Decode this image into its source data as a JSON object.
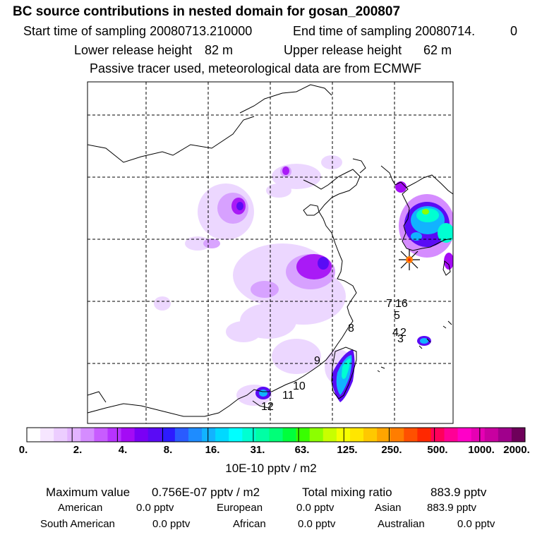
{
  "header": {
    "title": "BC  source contributions in nested domain for gosan_200807",
    "start_label": "Start time of sampling 20080713.210000",
    "end_label": "End time of sampling 20080714.",
    "end_suffix": "0",
    "lower_label": "Lower release height",
    "lower_value": "82 m",
    "upper_label": "Upper release height",
    "upper_value": "62 m",
    "note": "Passive tracer used, meteorological data are from ECMWF"
  },
  "map": {
    "receptor_marker": "star-icon",
    "trajectory_labels": [
      "7",
      "16",
      "5",
      "4",
      "2",
      "3",
      "8",
      "9",
      "10",
      "11",
      "12"
    ]
  },
  "colorbar": {
    "tick_labels": [
      "0.",
      "2.",
      "4.",
      "8.",
      "16.",
      "31.",
      "63.",
      "125.",
      "250.",
      "500.",
      "1000.",
      "2000."
    ],
    "colors": [
      "#ffffff",
      "#f6e6ff",
      "#eccdff",
      "#e3b3ff",
      "#d58cff",
      "#c85cff",
      "#b733ff",
      "#a40bf5",
      "#7a00f5",
      "#5a0bf5",
      "#2d1bff",
      "#2a5bff",
      "#1e8cff",
      "#12b3ff",
      "#00d9ff",
      "#00ffff",
      "#00ffd2",
      "#00ffa5",
      "#00ff78",
      "#00ff3c",
      "#38ff00",
      "#8cff00",
      "#c8ff00",
      "#f5ff00",
      "#ffe600",
      "#ffc800",
      "#ffa500",
      "#ff7d00",
      "#ff5000",
      "#ff2800",
      "#ff005a",
      "#ff0096",
      "#ff00c8",
      "#e600b4",
      "#c800a0",
      "#a0008c",
      "#6e005a"
    ],
    "units": "10E-10 pptv / m2"
  },
  "footer": {
    "max_label": "Maximum value",
    "max_value": "0.756E-07 pptv / m2",
    "total_label": "Total mixing ratio",
    "total_value": "883.9 pptv",
    "american_label": "American",
    "american_value": "0.0 pptv",
    "european_label": "European",
    "european_value": "0.0 pptv",
    "asian_label": "Asian",
    "asian_value": "883.9 pptv",
    "south_american_label": "South American",
    "south_american_value": "0.0 pptv",
    "african_label": "African",
    "african_value": "0.0 pptv",
    "australian_label": "Australian",
    "australian_value": "0.0 pptv"
  }
}
